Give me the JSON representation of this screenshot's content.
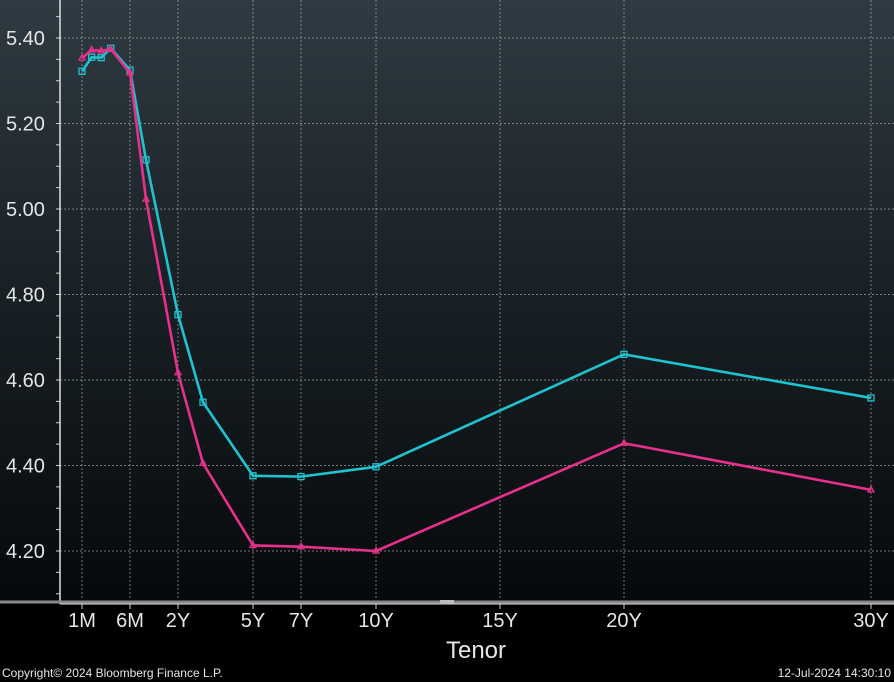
{
  "chart_data": {
    "type": "line",
    "xlabel": "Tenor",
    "ylabel": "",
    "ylim": [
      4.08,
      5.48
    ],
    "y_ticks": [
      4.2,
      4.4,
      4.6,
      4.8,
      5.0,
      5.2,
      5.4
    ],
    "y_tick_labels": [
      "4.20",
      "4.40",
      "4.60",
      "4.80",
      "5.00",
      "5.20",
      "5.40"
    ],
    "x_ticks": [
      {
        "label": "1M",
        "years": 0.083
      },
      {
        "label": "6M",
        "years": 0.5
      },
      {
        "label": "2Y",
        "years": 2
      },
      {
        "label": "5Y",
        "years": 5
      },
      {
        "label": "7Y",
        "years": 7
      },
      {
        "label": "10Y",
        "years": 10
      },
      {
        "label": "15Y",
        "years": 15
      },
      {
        "label": "20Y",
        "years": 20
      },
      {
        "label": "30Y",
        "years": 30
      }
    ],
    "grid": true,
    "legend": "none",
    "series": [
      {
        "color": "#1fc3cf",
        "marker": "square",
        "points": [
          {
            "years": 0.083,
            "value": 5.322
          },
          {
            "years": 0.167,
            "value": 5.355
          },
          {
            "years": 0.25,
            "value": 5.354
          },
          {
            "years": 0.333,
            "value": 5.376
          },
          {
            "years": 0.5,
            "value": 5.325
          },
          {
            "years": 1,
            "value": 5.115
          },
          {
            "years": 2,
            "value": 4.753
          },
          {
            "years": 3,
            "value": 4.548
          },
          {
            "years": 5,
            "value": 4.376
          },
          {
            "years": 7,
            "value": 4.374
          },
          {
            "years": 10,
            "value": 4.397
          },
          {
            "years": 20,
            "value": 4.66
          },
          {
            "years": 30,
            "value": 4.558
          }
        ]
      },
      {
        "color": "#e6308c",
        "marker": "triangle",
        "points": [
          {
            "years": 0.083,
            "value": 5.353
          },
          {
            "years": 0.167,
            "value": 5.372
          },
          {
            "years": 0.25,
            "value": 5.37
          },
          {
            "years": 0.333,
            "value": 5.374
          },
          {
            "years": 0.5,
            "value": 5.318
          },
          {
            "years": 1,
            "value": 5.023
          },
          {
            "years": 2,
            "value": 4.617
          },
          {
            "years": 3,
            "value": 4.405
          },
          {
            "years": 5,
            "value": 4.213
          },
          {
            "years": 7,
            "value": 4.21
          },
          {
            "years": 10,
            "value": 4.2
          },
          {
            "years": 20,
            "value": 4.452
          },
          {
            "years": 30,
            "value": 4.343
          }
        ]
      }
    ]
  },
  "footer": {
    "copyright": "Copyright© 2024 Bloomberg Finance L.P.",
    "timestamp": "12-Jul-2024 14:30:10"
  }
}
